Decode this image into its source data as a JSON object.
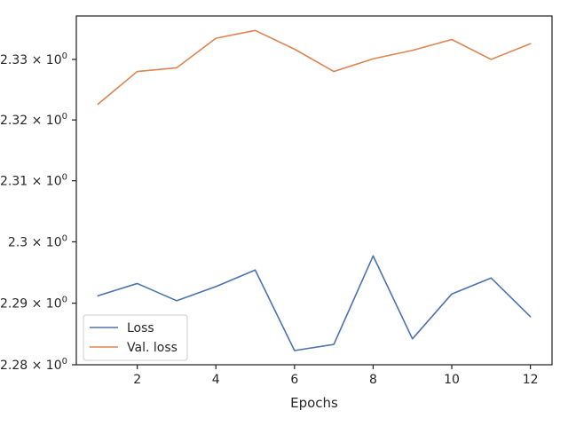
{
  "chart_data": {
    "type": "line",
    "title": "",
    "xlabel": "Epochs",
    "ylabel": "",
    "yscale": "log",
    "x": [
      1,
      2,
      3,
      4,
      5,
      6,
      7,
      8,
      9,
      10,
      11,
      12
    ],
    "xlim": [
      0.45,
      12.55
    ],
    "ylim": [
      2.28,
      2.3372
    ],
    "xticks": [
      2,
      4,
      6,
      8,
      10,
      12
    ],
    "xtick_labels": [
      "2",
      "4",
      "6",
      "8",
      "10",
      "12"
    ],
    "yticks": [
      2.28,
      2.29,
      2.3,
      2.31,
      2.32,
      2.33
    ],
    "ytick_labels": [
      {
        "mantissa": "2.28",
        "exponent": "0"
      },
      {
        "mantissa": "2.29",
        "exponent": "0"
      },
      {
        "mantissa": "2.3",
        "exponent": "0"
      },
      {
        "mantissa": "2.31",
        "exponent": "0"
      },
      {
        "mantissa": "2.32",
        "exponent": "0"
      },
      {
        "mantissa": "2.33",
        "exponent": "0"
      }
    ],
    "grid": false,
    "legend_position": "lower-left",
    "series": [
      {
        "name": "Loss",
        "color": "#4c72b0",
        "values": [
          2.2912,
          2.2932,
          2.2904,
          2.2927,
          2.2954,
          2.2823,
          2.2833,
          2.2977,
          2.2842,
          2.2915,
          2.2941,
          2.2878
        ]
      },
      {
        "name": "Val. loss",
        "color": "#dd8452",
        "values": [
          2.3226,
          2.328,
          2.3286,
          2.3335,
          2.3348,
          2.3317,
          2.328,
          2.3301,
          2.3315,
          2.3333,
          2.33,
          2.3326
        ]
      }
    ]
  }
}
